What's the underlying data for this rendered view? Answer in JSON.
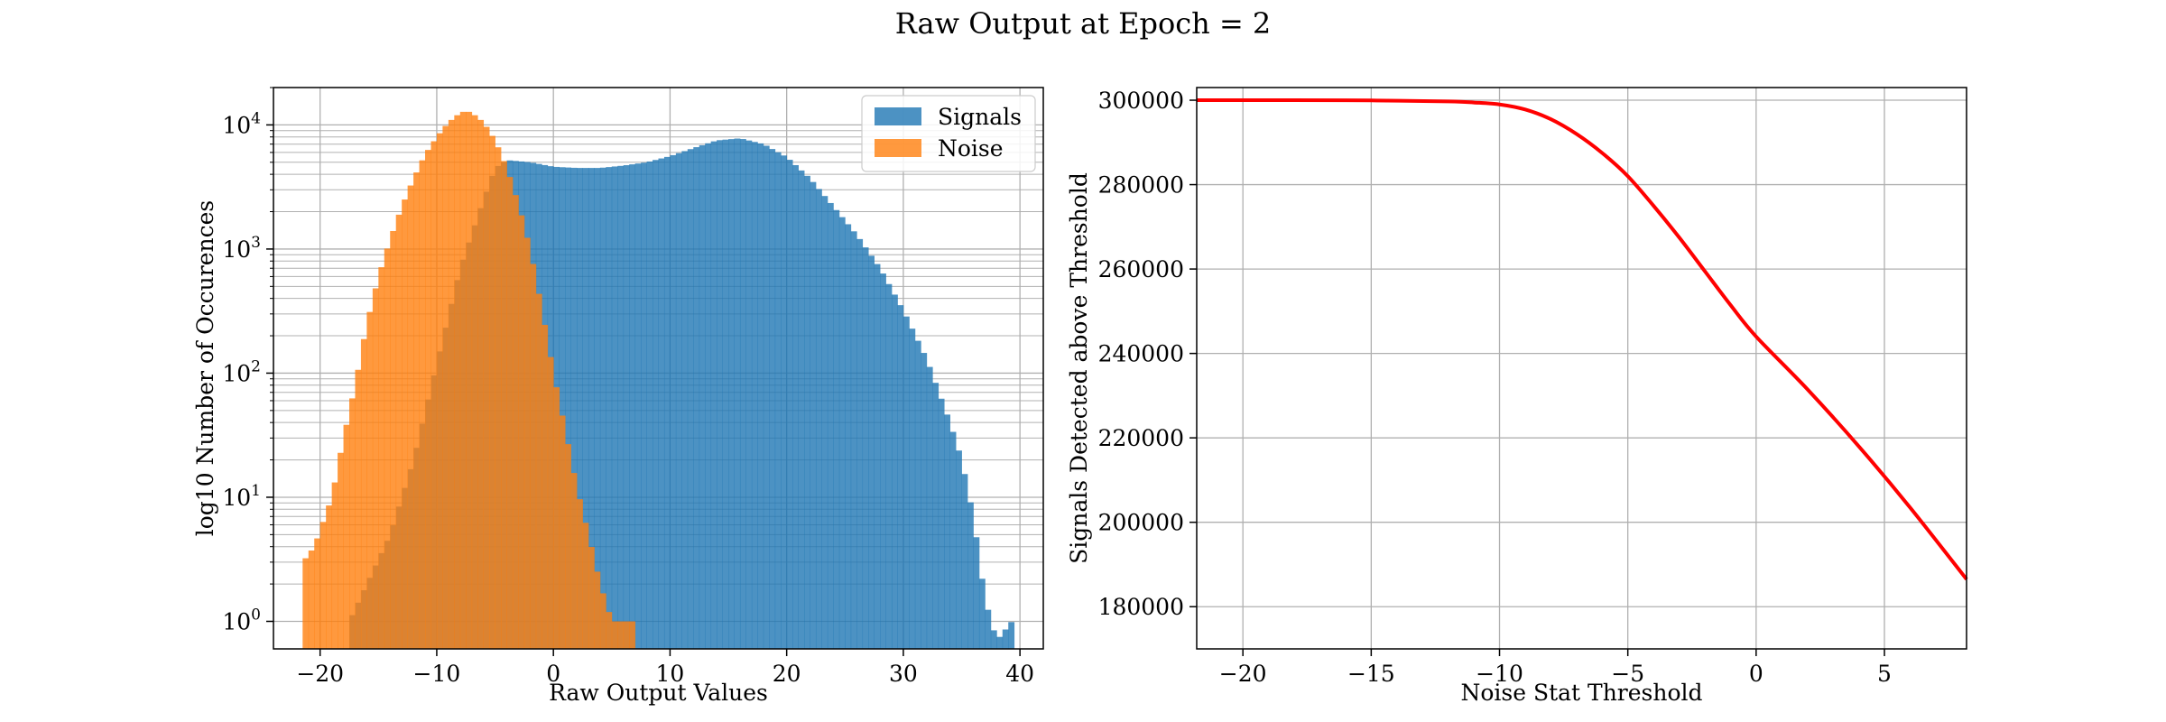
{
  "figure": {
    "suptitle": "Raw Output at Epoch = 2"
  },
  "chart_data": [
    {
      "type": "bar",
      "subtype": "histogram",
      "xlabel": "Raw Output Values",
      "ylabel": "log10 Number of Occurences",
      "yscale": "log",
      "xlim": [
        -24,
        42
      ],
      "ylim": [
        0.6,
        20000
      ],
      "xticks": [
        -20,
        -10,
        0,
        10,
        20,
        30,
        40
      ],
      "xtick_labels": [
        "−20",
        "−10",
        "0",
        "10",
        "20",
        "30",
        "40"
      ],
      "yticks": [
        1,
        10,
        100,
        1000,
        10000
      ],
      "ytick_labels": [
        {
          "base": "10",
          "exp": "0"
        },
        {
          "base": "10",
          "exp": "1"
        },
        {
          "base": "10",
          "exp": "2"
        },
        {
          "base": "10",
          "exp": "3"
        },
        {
          "base": "10",
          "exp": "4"
        }
      ],
      "grid": true,
      "legend": {
        "position": "upper right"
      },
      "series": [
        {
          "name": "Signals",
          "color": "#1f77b4",
          "alpha": 0.8,
          "points": [
            [
              -17.5,
              1
            ],
            [
              -16.0,
              2
            ],
            [
              -14.0,
              5
            ],
            [
              -12.0,
              20
            ],
            [
              -10.0,
              120
            ],
            [
              -8.0,
              700
            ],
            [
              -6.0,
              2500
            ],
            [
              -5.0,
              4500
            ],
            [
              -4.0,
              5200
            ],
            [
              -2.0,
              5000
            ],
            [
              0.0,
              4600
            ],
            [
              2.0,
              4500
            ],
            [
              4.0,
              4500
            ],
            [
              6.0,
              4700
            ],
            [
              8.0,
              5000
            ],
            [
              10.0,
              5600
            ],
            [
              12.0,
              6500
            ],
            [
              14.0,
              7500
            ],
            [
              16.0,
              7800
            ],
            [
              18.0,
              7000
            ],
            [
              20.0,
              5500
            ],
            [
              22.0,
              3700
            ],
            [
              24.0,
              2200
            ],
            [
              26.0,
              1300
            ],
            [
              28.0,
              700
            ],
            [
              30.0,
              320
            ],
            [
              32.0,
              130
            ],
            [
              34.0,
              40
            ],
            [
              35.0,
              20
            ],
            [
              36.0,
              7
            ],
            [
              37.0,
              1.5
            ],
            [
              38.0,
              0.7
            ],
            [
              39.3,
              1
            ]
          ]
        },
        {
          "name": "Noise",
          "color": "#ff7f0e",
          "alpha": 0.8,
          "points": [
            [
              -21.5,
              3
            ],
            [
              -20.5,
              4
            ],
            [
              -19.0,
              10
            ],
            [
              -18.0,
              30
            ],
            [
              -17.0,
              80
            ],
            [
              -16.0,
              250
            ],
            [
              -15.0,
              600
            ],
            [
              -14.0,
              1200
            ],
            [
              -13.0,
              2200
            ],
            [
              -12.0,
              3700
            ],
            [
              -11.0,
              5800
            ],
            [
              -10.0,
              8000
            ],
            [
              -9.0,
              10500
            ],
            [
              -8.0,
              12500
            ],
            [
              -7.5,
              13000
            ],
            [
              -7.0,
              12500
            ],
            [
              -6.0,
              10500
            ],
            [
              -5.0,
              7500
            ],
            [
              -4.0,
              4500
            ],
            [
              -3.0,
              2300
            ],
            [
              -2.0,
              1000
            ],
            [
              -1.0,
              330
            ],
            [
              0.0,
              100
            ],
            [
              1.0,
              35
            ],
            [
              2.0,
              12
            ],
            [
              3.0,
              5
            ],
            [
              4.0,
              2
            ],
            [
              5.0,
              1
            ],
            [
              7.0,
              1
            ]
          ]
        }
      ]
    },
    {
      "type": "line",
      "xlabel": "Noise Stat Threshold",
      "ylabel": "Signals Detected above Threshold",
      "xlim": [
        -21.8,
        8.2
      ],
      "ylim": [
        170000,
        303000
      ],
      "xticks": [
        -20,
        -15,
        -10,
        -5,
        0,
        5
      ],
      "xtick_labels": [
        "−20",
        "−15",
        "−10",
        "−5",
        "0",
        "5"
      ],
      "yticks": [
        180000,
        200000,
        220000,
        240000,
        260000,
        280000,
        300000
      ],
      "ytick_labels": [
        "180000",
        "200000",
        "220000",
        "240000",
        "260000",
        "280000",
        "300000"
      ],
      "grid": true,
      "series": [
        {
          "color": "#ff0000",
          "x": [
            -21.8,
            -18,
            -15,
            -12,
            -11,
            -10,
            -9,
            -8,
            -7,
            -6,
            -5,
            -4,
            -3,
            -2,
            -1,
            0,
            2,
            4,
            6,
            8.2
          ],
          "y": [
            300000,
            300000,
            299950,
            299700,
            299450,
            299000,
            297800,
            295500,
            292000,
            287500,
            282000,
            275000,
            267500,
            259500,
            251500,
            244000,
            231500,
            218000,
            203500,
            186500
          ]
        }
      ]
    }
  ]
}
